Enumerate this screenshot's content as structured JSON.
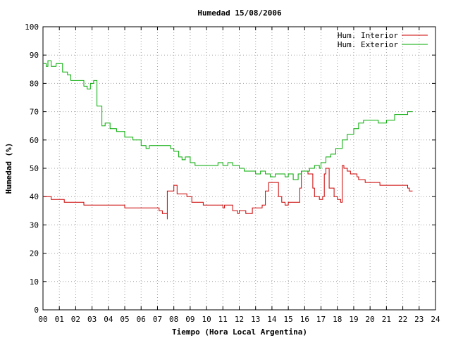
{
  "chart_data": {
    "type": "line",
    "title": "Humedad 15/08/2006",
    "xlabel": "Tiempo (Hora Local Argentina)",
    "ylabel": "Humedad (%)",
    "xlim": [
      0,
      24
    ],
    "ylim": [
      0,
      100
    ],
    "grid": true,
    "legend_position": "top-right",
    "x_ticks": [
      "00",
      "01",
      "02",
      "03",
      "04",
      "05",
      "06",
      "07",
      "08",
      "09",
      "10",
      "11",
      "12",
      "13",
      "14",
      "15",
      "16",
      "17",
      "18",
      "19",
      "20",
      "21",
      "22",
      "23",
      "24"
    ],
    "y_ticks": [
      "0",
      "10",
      "20",
      "30",
      "40",
      "50",
      "60",
      "70",
      "80",
      "90",
      "100"
    ],
    "series": [
      {
        "name": "Hum. Interior",
        "color": "#cc0000",
        "x": [
          0.0,
          0.5,
          0.5,
          1.3,
          1.3,
          2.5,
          2.5,
          3.6,
          3.8,
          5.0,
          5.5,
          6.2,
          7.0,
          7.1,
          7.3,
          7.3,
          7.6,
          7.6,
          7.9,
          8.0,
          8.2,
          8.2,
          8.8,
          8.8,
          9.0,
          9.1,
          9.8,
          9.8,
          10.9,
          11.0,
          11.1,
          11.4,
          11.6,
          11.9,
          12.0,
          12.3,
          12.4,
          12.8,
          12.8,
          13.3,
          13.4,
          13.5,
          13.6,
          13.6,
          13.8,
          14.0,
          14.2,
          14.4,
          14.6,
          14.8,
          15.0,
          15.4,
          15.5,
          15.7,
          15.8,
          16.0,
          16.2,
          16.5,
          16.6,
          16.9,
          17.0,
          17.1,
          17.2,
          17.3,
          17.5,
          17.8,
          18.0,
          18.1,
          18.2,
          18.3,
          18.4,
          18.6,
          18.8,
          18.9,
          19.0,
          19.2,
          19.3,
          19.7,
          20.5,
          20.6,
          21.5,
          22.3,
          22.4,
          22.6
        ],
        "y": [
          40,
          40,
          39,
          39,
          38,
          38,
          37,
          37,
          37,
          36,
          36,
          36,
          36,
          35,
          35,
          34,
          32,
          42,
          42,
          44,
          43,
          41,
          41,
          40,
          40,
          38,
          38,
          37,
          37,
          36,
          37,
          37,
          35,
          34,
          35,
          35,
          34,
          35,
          36,
          36,
          37,
          37,
          38,
          42,
          45,
          45,
          45,
          40,
          38,
          37,
          38,
          38,
          38,
          43,
          49,
          49,
          48,
          43,
          40,
          39,
          39,
          40,
          48,
          50,
          43,
          40,
          39,
          39,
          38,
          51,
          50,
          49,
          48,
          48,
          48,
          47,
          46,
          45,
          45,
          44,
          44,
          43,
          42,
          42
        ]
      },
      {
        "name": "Hum. Exterior",
        "color": "#00aa00",
        "x": [
          0.0,
          0.2,
          0.3,
          0.5,
          0.8,
          1.0,
          1.2,
          1.5,
          1.7,
          2.0,
          2.2,
          2.5,
          2.7,
          2.9,
          3.0,
          3.1,
          3.3,
          3.6,
          3.8,
          4.1,
          4.5,
          5.0,
          5.5,
          6.0,
          6.3,
          6.5,
          7.0,
          7.5,
          7.8,
          8.0,
          8.3,
          8.5,
          8.7,
          9.0,
          9.3,
          9.6,
          10.0,
          10.4,
          10.7,
          11.0,
          11.3,
          11.6,
          12.0,
          12.3,
          12.6,
          13.0,
          13.3,
          13.6,
          13.9,
          14.2,
          14.5,
          14.8,
          15.0,
          15.3,
          15.6,
          15.8,
          16.0,
          16.3,
          16.6,
          16.9,
          17.0,
          17.3,
          17.6,
          17.9,
          18.3,
          18.6,
          19.0,
          19.3,
          19.6,
          20.0,
          20.5,
          21.0,
          21.5,
          22.0,
          22.3,
          22.6
        ],
        "y": [
          87,
          86,
          88,
          86,
          87,
          87,
          84,
          83,
          81,
          81,
          81,
          79,
          78,
          80,
          80,
          81,
          72,
          65,
          66,
          64,
          63,
          61,
          60,
          58,
          57,
          58,
          58,
          58,
          57,
          56,
          54,
          53,
          54,
          52,
          51,
          51,
          51,
          51,
          52,
          51,
          52,
          51,
          50,
          49,
          49,
          48,
          49,
          48,
          47,
          48,
          48,
          47,
          48,
          46,
          48,
          49,
          49,
          50,
          51,
          50,
          52,
          54,
          55,
          57,
          60,
          62,
          64,
          66,
          67,
          67,
          66,
          67,
          69,
          69,
          70,
          70
        ]
      }
    ]
  }
}
